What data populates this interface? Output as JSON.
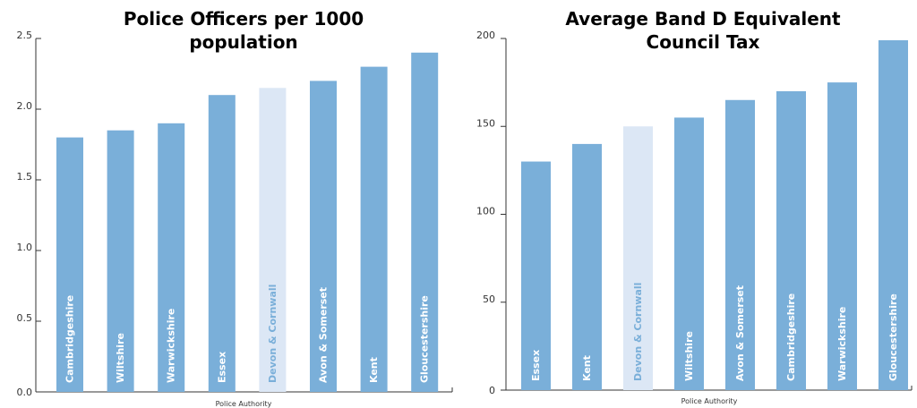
{
  "colors": {
    "bar": "#7aafd9",
    "highlight_bar": "#dce7f5",
    "label_light": "#ffffff",
    "label_highlight": "#7aafd9",
    "axis": "#333333"
  },
  "chart_data": [
    {
      "type": "bar",
      "title": [
        "Police Officers per 1000",
        "population"
      ],
      "xlabel": "Police Authority",
      "ylabel": "",
      "ylim": [
        0,
        2.5
      ],
      "yticks": [
        "0.0",
        "0.5",
        "1.0",
        "1.5",
        "2.0",
        "2.5"
      ],
      "categories": [
        "Cambridgeshire",
        "Wiltshire",
        "Warwickshire",
        "Essex",
        "Devon & Cornwall",
        "Avon & Somerset",
        "Kent",
        "Gloucestershire"
      ],
      "values": [
        1.8,
        1.85,
        1.9,
        2.1,
        2.15,
        2.2,
        2.3,
        2.4
      ],
      "highlight": "Devon & Cornwall",
      "grid": false
    },
    {
      "type": "bar",
      "title": [
        "Average Band D Equivalent",
        "Council Tax"
      ],
      "xlabel": "Police Authority",
      "ylabel": "",
      "ylim": [
        0,
        200
      ],
      "yticks": [
        "0",
        "50",
        "100",
        "150",
        "200"
      ],
      "categories": [
        "Essex",
        "Kent",
        "Devon & Cornwall",
        "Wiltshire",
        "Avon & Somerset",
        "Cambridgeshire",
        "Warwickshire",
        "Gloucestershire"
      ],
      "values": [
        130,
        140,
        150,
        155,
        165,
        170,
        175,
        199
      ],
      "highlight": "Devon & Cornwall",
      "grid": false
    }
  ]
}
